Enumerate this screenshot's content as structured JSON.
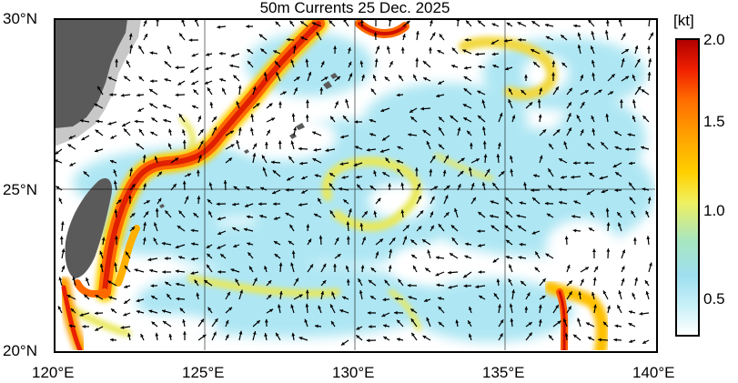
{
  "title": "50m Currents  25 Dec. 2025",
  "colorbar": {
    "unit": "[kt]",
    "labels": [
      "2.0",
      "1.5",
      "1.0",
      "0.5"
    ],
    "colors": [
      "#ffffff",
      "#c8f0f8",
      "#9edff0",
      "#a8e6c0",
      "#f0f060",
      "#ffd000",
      "#ffa000",
      "#ff6a00",
      "#f02000",
      "#b00000"
    ]
  },
  "axes": {
    "lat_labels": [
      "30°N",
      "25°N",
      "20°N"
    ],
    "lon_labels": [
      "120°E",
      "125°E",
      "130°E",
      "135°E",
      "140°E"
    ]
  },
  "colors": {
    "land": "#5a5a5a",
    "shelf": "#c8c8c8",
    "arrow": "#000000",
    "grid": "#000000"
  }
}
